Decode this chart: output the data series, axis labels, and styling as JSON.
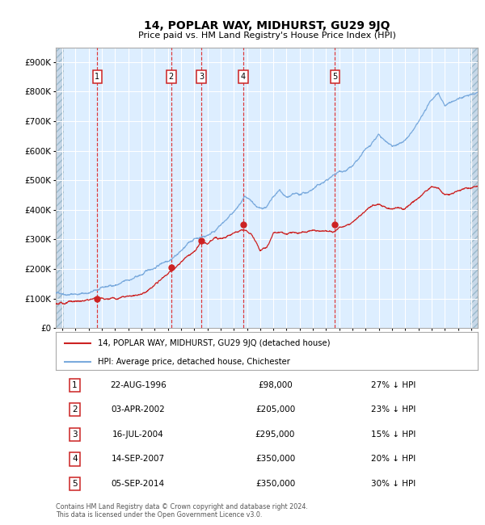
{
  "title": "14, POPLAR WAY, MIDHURST, GU29 9JQ",
  "subtitle": "Price paid vs. HM Land Registry's House Price Index (HPI)",
  "legend_property": "14, POPLAR WAY, MIDHURST, GU29 9JQ (detached house)",
  "legend_hpi": "HPI: Average price, detached house, Chichester",
  "footer": "Contains HM Land Registry data © Crown copyright and database right 2024.\nThis data is licensed under the Open Government Licence v3.0.",
  "sales": [
    {
      "num": 1,
      "date": "22-AUG-1996",
      "date_x": 1996.645,
      "price": 98000,
      "pct": "27% ↓ HPI"
    },
    {
      "num": 2,
      "date": "03-APR-2002",
      "date_x": 2002.253,
      "price": 205000,
      "pct": "23% ↓ HPI"
    },
    {
      "num": 3,
      "date": "16-JUL-2004",
      "date_x": 2004.54,
      "price": 295000,
      "pct": "15% ↓ HPI"
    },
    {
      "num": 4,
      "date": "14-SEP-2007",
      "date_x": 2007.706,
      "price": 350000,
      "pct": "20% ↓ HPI"
    },
    {
      "num": 5,
      "date": "05-SEP-2014",
      "date_x": 2014.678,
      "price": 350000,
      "pct": "30% ↓ HPI"
    }
  ],
  "xlim": [
    1993.5,
    2025.5
  ],
  "ylim": [
    0,
    950000
  ],
  "yticks": [
    0,
    100000,
    200000,
    300000,
    400000,
    500000,
    600000,
    700000,
    800000,
    900000
  ],
  "ytick_labels": [
    "£0",
    "£100K",
    "£200K",
    "£300K",
    "£400K",
    "£500K",
    "£600K",
    "£700K",
    "£800K",
    "£900K"
  ],
  "hpi_color": "#7aaadd",
  "property_color": "#cc2222",
  "sale_marker_color": "#cc2222",
  "sale_vline_color": "#dd2222",
  "bg_color": "#ddeeff",
  "grid_color": "#ffffff",
  "label_box_color": "#cc2222",
  "hatch_bg": "#c8d8e8"
}
